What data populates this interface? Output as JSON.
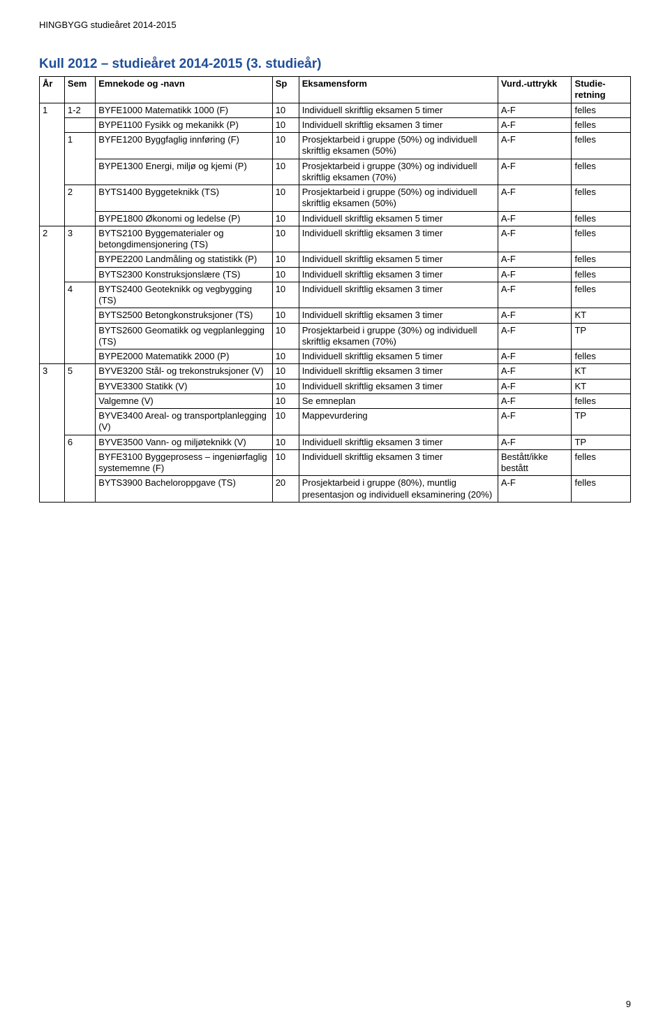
{
  "doc_header": "HINGBYGG studieåret 2014-2015",
  "page_title": "Kull 2012 – studieåret 2014-2015 (3. studieår)",
  "page_number": "9",
  "title_color": "#1f4e99",
  "border_color": "#000000",
  "text_color": "#000000",
  "font_size_body": 13,
  "font_size_title": 19,
  "columns": {
    "ar": "År",
    "sem": "Sem",
    "emne": "Emnekode og -navn",
    "sp": "Sp",
    "eks": "Eksamensform",
    "vurd": "Vurd.-uttrykk",
    "stud": "Studie-retning"
  },
  "rows": [
    {
      "ar": "1",
      "ar_rowspan": 6,
      "sem": "1-2",
      "sem_rowspan": 1,
      "emne": "BYFE1000 Matematikk 1000 (F)",
      "sp": "10",
      "eks": "Individuell skriftlig eksamen 5 timer",
      "vurd": "A-F",
      "stud": "felles"
    },
    {
      "sem_skip": true,
      "emne": "BYPE1100 Fysikk og mekanikk (P)",
      "sp": "10",
      "eks": "Individuell skriftlig eksamen 3 timer",
      "vurd": "A-F",
      "stud": "felles"
    },
    {
      "sem": "1",
      "sem_rowspan": 2,
      "emne": "BYFE1200 Byggfaglig innføring (F)",
      "sp": "10",
      "eks": "Prosjektarbeid i gruppe (50%) og individuell skriftlig eksamen (50%)",
      "vurd": "A-F",
      "stud": "felles"
    },
    {
      "emne": "BYPE1300 Energi, miljø og kjemi (P)",
      "sp": "10",
      "eks": "Prosjektarbeid i gruppe (30%) og individuell skriftlig eksamen (70%)",
      "vurd": "A-F",
      "stud": "felles"
    },
    {
      "sem": "2",
      "sem_rowspan": 2,
      "emne": "BYTS1400 Byggeteknikk (TS)",
      "sp": "10",
      "eks": "Prosjektarbeid i gruppe (50%) og individuell skriftlig eksamen (50%)",
      "vurd": "A-F",
      "stud": "felles"
    },
    {
      "emne": "BYPE1800 Økonomi og ledelse (P)",
      "sp": "10",
      "eks": "Individuell skriftlig eksamen 5 timer",
      "vurd": "A-F",
      "stud": "felles"
    },
    {
      "ar": "2",
      "ar_rowspan": 7,
      "sem": "3",
      "sem_rowspan": 3,
      "emne": "BYTS2100 Byggematerialer og betongdimensjonering (TS)",
      "sp": "10",
      "eks": "Individuell skriftlig eksamen 3 timer",
      "vurd": "A-F",
      "stud": "felles"
    },
    {
      "emne": "BYPE2200 Landmåling og statistikk (P)",
      "sp": "10",
      "eks": "Individuell skriftlig eksamen 5 timer",
      "vurd": "A-F",
      "stud": "felles"
    },
    {
      "emne": "BYTS2300 Konstruksjonslære (TS)",
      "sp": "10",
      "eks": "Individuell skriftlig eksamen 3 timer",
      "vurd": "A-F",
      "stud": "felles"
    },
    {
      "sem": "4",
      "sem_rowspan": 4,
      "emne": "BYTS2400 Geoteknikk og vegbygging (TS)",
      "sp": "10",
      "eks": "Individuell skriftlig eksamen 3 timer",
      "vurd": "A-F",
      "stud": "felles"
    },
    {
      "emne": "BYTS2500 Betongkonstruksjoner (TS)",
      "sp": "10",
      "eks": "Individuell skriftlig eksamen 3 timer",
      "vurd": "A-F",
      "stud": "KT"
    },
    {
      "emne": "BYTS2600 Geomatikk og vegplanlegging (TS)",
      "sp": "10",
      "eks": "Prosjektarbeid i gruppe (30%) og individuell skriftlig eksamen (70%)",
      "vurd": "A-F",
      "stud": "TP"
    },
    {
      "emne": "BYPE2000 Matematikk 2000 (P)",
      "sp": "10",
      "eks": "Individuell skriftlig eksamen 5 timer",
      "vurd": "A-F",
      "stud": "felles"
    },
    {
      "ar": "3",
      "ar_rowspan": 7,
      "sem": "5",
      "sem_rowspan": 4,
      "emne": "BYVE3200 Stål- og trekonstruksjoner (V)",
      "sp": "10",
      "eks": "Individuell skriftlig eksamen 3 timer",
      "vurd": "A-F",
      "stud": "KT"
    },
    {
      "emne": "BYVE3300 Statikk (V)",
      "sp": "10",
      "eks": "Individuell skriftlig eksamen 3 timer",
      "vurd": "A-F",
      "stud": "KT"
    },
    {
      "emne": "Valgemne (V)",
      "sp": "10",
      "eks": "Se emneplan",
      "vurd": "A-F",
      "stud": "felles"
    },
    {
      "emne": "BYVE3400 Areal- og transportplanlegging (V)",
      "sp": "10",
      "eks": "Mappevurdering",
      "vurd": "A-F",
      "stud": "TP"
    },
    {
      "sem": "6",
      "sem_rowspan": 3,
      "emne": "BYVE3500 Vann- og miljøteknikk (V)",
      "sp": "10",
      "eks": "Individuell skriftlig eksamen 3 timer",
      "vurd": "A-F",
      "stud": "TP"
    },
    {
      "emne": "BYFE3100 Byggeprosess – ingeniørfaglig systememne (F)",
      "sp": "10",
      "eks": " Individuell skriftlig eksamen 3 timer",
      "vurd": "Bestått/ikke bestått",
      "stud": "felles"
    },
    {
      "emne": "BYTS3900 Bacheloroppgave (TS)",
      "sp": "20",
      "eks": "Prosjektarbeid i gruppe (80%), muntlig presentasjon og individuell eksaminering (20%)",
      "vurd": "A-F",
      "stud": "felles"
    }
  ]
}
